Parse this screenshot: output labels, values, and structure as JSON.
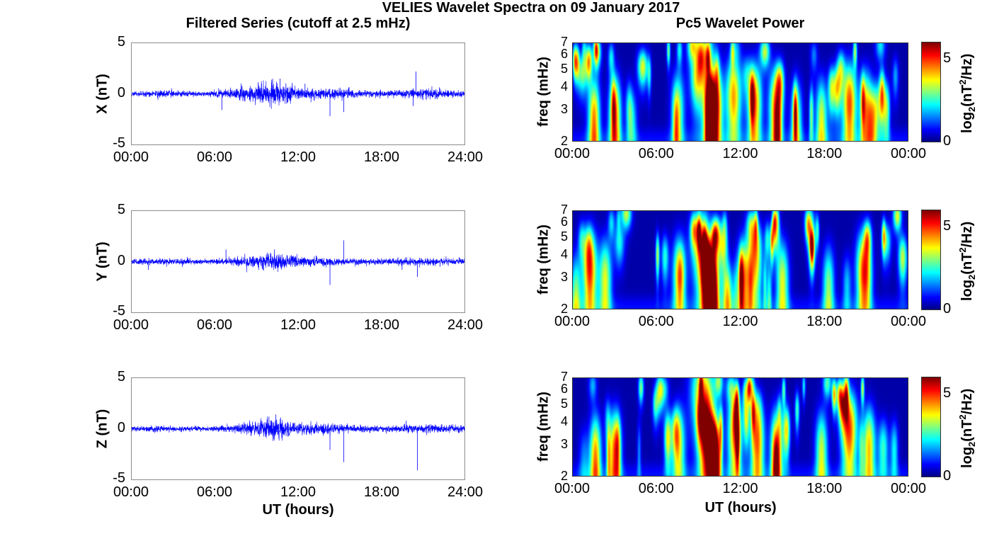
{
  "title": "VELIES Wavelet Spectra on 09 January 2017",
  "left_column_title": "Filtered Series (cutoff at 2.5 mHz)",
  "right_column_title": "Pc5 Wavelet Power",
  "x_label": "UT (hours)",
  "colors": {
    "series_line": "#0000ff",
    "axes_box": "#8c8c8c"
  },
  "chart_data": [
    {
      "type": "line",
      "panel": "X",
      "ylabel": "X (nT)",
      "ylim": [
        -5,
        5
      ],
      "yticks": [
        "5",
        "0",
        "-5"
      ],
      "xlim_hours": [
        0,
        24
      ],
      "xticks": [
        "00:00",
        "06:00",
        "12:00",
        "18:00",
        "24:00"
      ],
      "series": [
        {
          "noise_envelope_nT": [
            [
              0,
              0.2
            ],
            [
              2,
              0.3
            ],
            [
              5,
              0.2
            ],
            [
              7,
              0.4
            ],
            [
              8,
              0.6
            ],
            [
              9,
              0.8
            ],
            [
              10,
              1.0
            ],
            [
              11,
              0.9
            ],
            [
              12,
              0.6
            ],
            [
              13,
              0.5
            ],
            [
              15,
              0.4
            ],
            [
              17,
              0.3
            ],
            [
              19,
              0.3
            ],
            [
              21,
              0.5
            ],
            [
              22,
              0.4
            ],
            [
              24,
              0.3
            ]
          ],
          "spikes": [
            [
              6.5,
              -1.6
            ],
            [
              10.1,
              1.4
            ],
            [
              10.7,
              1.5
            ],
            [
              12.5,
              1.0
            ],
            [
              14.3,
              -2.2
            ],
            [
              15.3,
              -1.8
            ],
            [
              20.5,
              2.2
            ],
            [
              20.3,
              -1.2
            ]
          ]
        }
      ]
    },
    {
      "type": "line",
      "panel": "Y",
      "ylabel": "Y (nT)",
      "ylim": [
        -5,
        5
      ],
      "yticks": [
        "5",
        "0",
        "-5"
      ],
      "xlim_hours": [
        0,
        24
      ],
      "xticks": [
        "00:00",
        "06:00",
        "12:00",
        "18:00",
        "24:00"
      ],
      "series": [
        {
          "noise_envelope_nT": [
            [
              0,
              0.25
            ],
            [
              2,
              0.3
            ],
            [
              5,
              0.2
            ],
            [
              7,
              0.3
            ],
            [
              8,
              0.4
            ],
            [
              9,
              0.6
            ],
            [
              10,
              0.9
            ],
            [
              11,
              0.7
            ],
            [
              12,
              0.4
            ],
            [
              14,
              0.5
            ],
            [
              15,
              0.3
            ],
            [
              18,
              0.25
            ],
            [
              20,
              0.35
            ],
            [
              22,
              0.3
            ],
            [
              24,
              0.25
            ]
          ],
          "spikes": [
            [
              1.2,
              -0.8
            ],
            [
              6.8,
              1.2
            ],
            [
              10.3,
              1.2
            ],
            [
              14.3,
              -2.3
            ],
            [
              15.3,
              2.1
            ],
            [
              19.5,
              -0.8
            ],
            [
              20.6,
              -1.5
            ]
          ]
        }
      ]
    },
    {
      "type": "line",
      "panel": "Z",
      "ylabel": "Z (nT)",
      "ylim": [
        -5,
        5
      ],
      "yticks": [
        "5",
        "0",
        "-5"
      ],
      "xlim_hours": [
        0,
        24
      ],
      "xticks": [
        "00:00",
        "06:00",
        "12:00",
        "18:00",
        "24:00"
      ],
      "series": [
        {
          "noise_envelope_nT": [
            [
              0,
              0.2
            ],
            [
              2,
              0.3
            ],
            [
              5,
              0.2
            ],
            [
              7,
              0.3
            ],
            [
              8,
              0.5
            ],
            [
              9,
              0.7
            ],
            [
              10,
              1.0
            ],
            [
              11,
              0.8
            ],
            [
              12,
              0.5
            ],
            [
              14,
              0.5
            ],
            [
              16,
              0.3
            ],
            [
              19,
              0.3
            ],
            [
              21,
              0.4
            ],
            [
              24,
              0.3
            ]
          ],
          "spikes": [
            [
              9.9,
              1.2
            ],
            [
              10.4,
              1.4
            ],
            [
              14.3,
              -2.1
            ],
            [
              15.3,
              -3.3
            ],
            [
              20.6,
              -4.1
            ],
            [
              19.8,
              0.8
            ]
          ]
        }
      ]
    },
    {
      "type": "heatmap",
      "panel": "X power",
      "ylabel": "freq (mHz)",
      "y_scale": "log",
      "ylim": [
        2,
        7
      ],
      "yticks": [
        "7",
        "6",
        "5",
        "4",
        "3",
        "2"
      ],
      "xlim_hours": [
        0,
        24
      ],
      "xticks": [
        "00:00",
        "06:00",
        "12:00",
        "18:00",
        "00:00"
      ],
      "colorbar": {
        "label_base": "log",
        "label_sub": "2",
        "label_mid": "(nT",
        "label_sup": "2",
        "label_end": "/Hz)",
        "ticks": [
          "5",
          "0"
        ],
        "range": [
          0,
          6
        ]
      },
      "hotspots": [
        [
          1.5,
          2.5,
          4.5
        ],
        [
          3.0,
          2.6,
          4.6
        ],
        [
          9.8,
          2.2,
          6.0
        ],
        [
          10.2,
          3.0,
          5.5
        ],
        [
          9.3,
          5.5,
          4.0
        ],
        [
          11.5,
          3.5,
          4.2
        ],
        [
          13.0,
          3.2,
          4.5
        ],
        [
          14.5,
          3.0,
          4.0
        ],
        [
          19.8,
          3.2,
          4.8
        ],
        [
          21.0,
          2.8,
          4.0
        ],
        [
          17.8,
          2.5,
          3.5
        ],
        [
          7.5,
          2.8,
          3.2
        ],
        [
          16.0,
          2.4,
          3.2
        ]
      ]
    },
    {
      "type": "heatmap",
      "panel": "Y power",
      "ylabel": "freq (mHz)",
      "y_scale": "log",
      "ylim": [
        2,
        7
      ],
      "yticks": [
        "7",
        "6",
        "5",
        "4",
        "3",
        "2"
      ],
      "xlim_hours": [
        0,
        24
      ],
      "xticks": [
        "00:00",
        "06:00",
        "12:00",
        "18:00",
        "00:00"
      ],
      "colorbar": {
        "label_base": "log",
        "label_sub": "2",
        "label_mid": "(nT",
        "label_sup": "2",
        "label_end": "/Hz)",
        "ticks": [
          "5",
          "0"
        ],
        "range": [
          0,
          6
        ]
      },
      "hotspots": [
        [
          1.2,
          3.2,
          4.8
        ],
        [
          2.3,
          2.8,
          3.5
        ],
        [
          9.6,
          2.8,
          5.0
        ],
        [
          10.1,
          2.3,
          6.0
        ],
        [
          9.2,
          4.5,
          3.8
        ],
        [
          12.2,
          2.8,
          4.0
        ],
        [
          13.0,
          3.5,
          3.8
        ],
        [
          15.0,
          2.7,
          3.5
        ],
        [
          20.8,
          3.2,
          4.5
        ],
        [
          7.6,
          3.0,
          3.4
        ],
        [
          18.3,
          2.5,
          3.0
        ],
        [
          0.2,
          2.1,
          3.2
        ]
      ]
    },
    {
      "type": "heatmap",
      "panel": "Z power",
      "ylabel": "freq (mHz)",
      "y_scale": "log",
      "ylim": [
        2,
        7
      ],
      "yticks": [
        "7",
        "6",
        "5",
        "4",
        "3",
        "2"
      ],
      "xlim_hours": [
        0,
        24
      ],
      "xticks": [
        "00:00",
        "06:00",
        "12:00",
        "18:00",
        "00:00"
      ],
      "colorbar": {
        "label_base": "log",
        "label_sub": "2",
        "label_mid": "(nT",
        "label_sup": "2",
        "label_end": "/Hz)",
        "ticks": [
          "5",
          "0"
        ],
        "range": [
          0,
          6
        ]
      },
      "hotspots": [
        [
          1.6,
          2.4,
          4.5
        ],
        [
          3.0,
          2.6,
          4.8
        ],
        [
          9.6,
          3.2,
          5.2
        ],
        [
          10.2,
          2.2,
          6.0
        ],
        [
          9.3,
          5.8,
          4.0
        ],
        [
          11.6,
          3.4,
          4.2
        ],
        [
          13.2,
          3.0,
          4.6
        ],
        [
          14.6,
          2.8,
          3.8
        ],
        [
          19.8,
          3.6,
          4.8
        ],
        [
          21.2,
          2.8,
          4.0
        ],
        [
          17.8,
          2.6,
          3.4
        ],
        [
          7.6,
          2.8,
          3.0
        ]
      ]
    }
  ]
}
